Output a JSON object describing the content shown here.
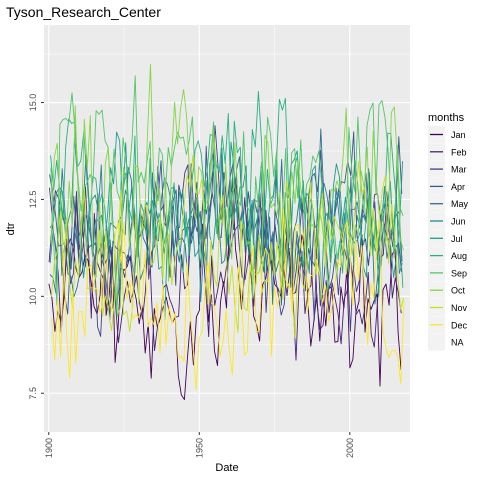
{
  "chart_data": {
    "type": "line",
    "title": "Tyson_Research_Center",
    "xlabel": "Date",
    "ylabel": "dtr",
    "x_type": "date",
    "xlim": [
      "1898-06-01",
      "2020-01-01"
    ],
    "ylim": [
      6.5,
      17.0
    ],
    "x_ticks": [
      {
        "label": "1900",
        "value": 1900
      },
      {
        "label": "1950",
        "value": 1950
      },
      {
        "label": "2000",
        "value": 2000
      }
    ],
    "y_ticks": [
      {
        "label": "7.5",
        "value": 7.5
      },
      {
        "label": "10.0",
        "value": 10.0
      },
      {
        "label": "12.5",
        "value": 12.5
      },
      {
        "label": "15.0",
        "value": 15.0
      }
    ],
    "grid": true,
    "x_start_year": 1900,
    "x_end_year": 2017,
    "legend": {
      "title": "months",
      "position": "right",
      "entries": [
        {
          "label": "Jan",
          "color": "#440154"
        },
        {
          "label": "Feb",
          "color": "#482173"
        },
        {
          "label": "Mar",
          "color": "#433e85"
        },
        {
          "label": "Apr",
          "color": "#38598c"
        },
        {
          "label": "May",
          "color": "#2d708e"
        },
        {
          "label": "Jun",
          "color": "#25858e"
        },
        {
          "label": "Jul",
          "color": "#1e9b8a"
        },
        {
          "label": "Aug",
          "color": "#2ab07f"
        },
        {
          "label": "Sep",
          "color": "#52c569"
        },
        {
          "label": "Oct",
          "color": "#86d549"
        },
        {
          "label": "Nov",
          "color": "#c2df23"
        },
        {
          "label": "Dec",
          "color": "#fde725"
        },
        {
          "label": "NA",
          "color": "#7f7f7f"
        }
      ]
    },
    "series": [
      {
        "name": "Jan",
        "base": 9.9,
        "amp": 0.9,
        "color": "#440154"
      },
      {
        "name": "Feb",
        "base": 10.6,
        "amp": 0.9,
        "color": "#482173"
      },
      {
        "name": "Mar",
        "base": 11.5,
        "amp": 1.0,
        "color": "#433e85"
      },
      {
        "name": "Apr",
        "base": 12.0,
        "amp": 1.0,
        "color": "#38598c"
      },
      {
        "name": "May",
        "base": 11.7,
        "amp": 0.9,
        "color": "#2d708e"
      },
      {
        "name": "Jun",
        "base": 11.9,
        "amp": 0.8,
        "color": "#25858e"
      },
      {
        "name": "Jul",
        "base": 12.1,
        "amp": 0.9,
        "color": "#1e9b8a"
      },
      {
        "name": "Aug",
        "base": 12.6,
        "amp": 1.0,
        "color": "#2ab07f"
      },
      {
        "name": "Sep",
        "base": 12.9,
        "amp": 1.1,
        "color": "#52c569"
      },
      {
        "name": "Oct",
        "base": 12.7,
        "amp": 1.2,
        "color": "#86d549"
      },
      {
        "name": "Nov",
        "base": 11.0,
        "amp": 1.0,
        "color": "#c2df23"
      },
      {
        "name": "Dec",
        "base": 9.8,
        "amp": 0.9,
        "color": "#fde725"
      }
    ]
  }
}
